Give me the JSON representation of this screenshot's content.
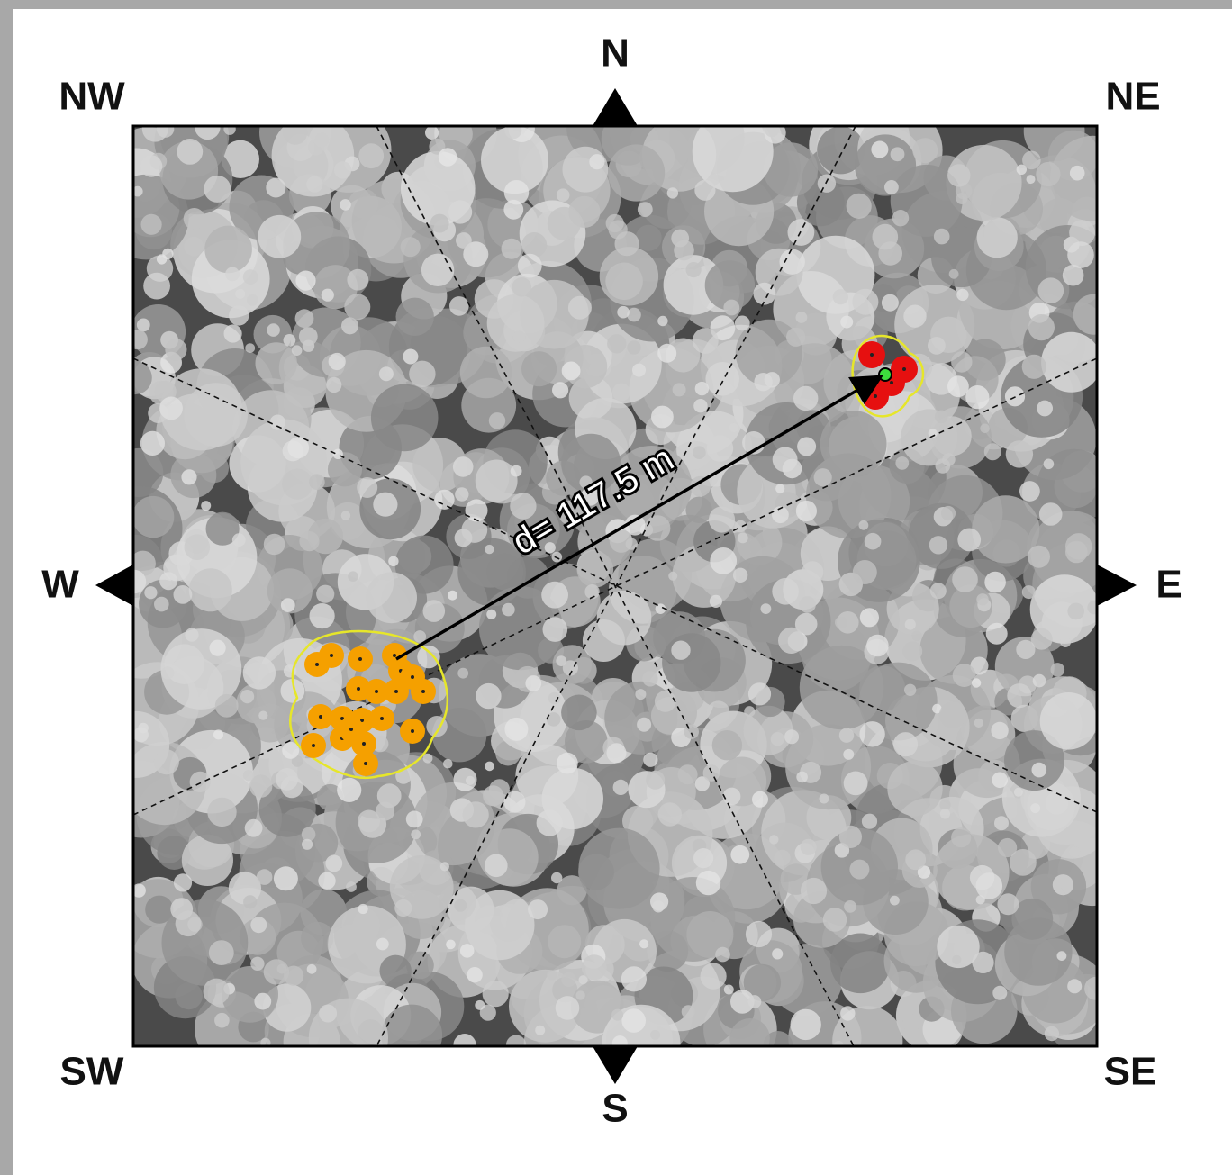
{
  "compass": {
    "north": "N",
    "northeast": "NE",
    "east": "E",
    "southeast": "SE",
    "south": "S",
    "southwest": "SW",
    "west": "W",
    "northwest": "NW"
  },
  "annotation": {
    "distance_label": "d= 117.5 m"
  }
}
